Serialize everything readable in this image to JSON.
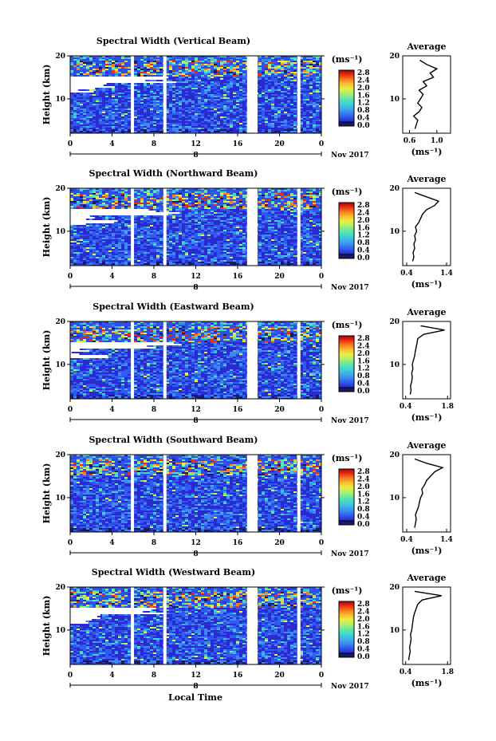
{
  "figure": {
    "xlabel": "Local Time",
    "date_label": "Nov 2017",
    "day_marker": "8",
    "unit_label": "(ms⁻¹)",
    "average_title": "Average",
    "average_xlabel": "(ms⁻¹)",
    "colormap": [
      "#1a1a5e",
      "#2a2ad0",
      "#2f5cf0",
      "#3f8af2",
      "#3fb4e8",
      "#40d8d0",
      "#66e8a0",
      "#a8f070",
      "#e8f040",
      "#f8c030",
      "#f88020",
      "#e83010",
      "#b00000"
    ]
  },
  "chart_data": [
    {
      "type": "heatmap",
      "title": "Spectral Width (Vertical Beam)",
      "ylabel": "Height (km)",
      "xlabel": "Local Time",
      "xlim": [
        0,
        24
      ],
      "ylim": [
        2,
        20
      ],
      "x_ticks": [
        "0",
        "4",
        "8",
        "12",
        "16",
        "20",
        "0"
      ],
      "y_ticks": [
        "20",
        "10"
      ],
      "colorbar": {
        "label": "(ms⁻¹)",
        "ticks": [
          "0.0",
          "0.4",
          "0.8",
          "1.2",
          "1.6",
          "2.0",
          "2.4",
          "2.8"
        ],
        "range": [
          0.0,
          2.8
        ]
      },
      "data_gaps_hours": [
        [
          5.8,
          6.1
        ],
        [
          8.9,
          9.2
        ],
        [
          16.9,
          17.9
        ],
        [
          21.7,
          22.0
        ]
      ],
      "average_profile": {
        "title": "Average",
        "xlabel": "(ms⁻¹)",
        "x_ticks": [
          "0.6",
          "1.0"
        ],
        "xlim": [
          0.5,
          1.2
        ],
        "y_ticks": [
          "20",
          "10"
        ],
        "ylim": [
          2,
          20
        ],
        "height_km": [
          3,
          4,
          5,
          6,
          7,
          8,
          9,
          10,
          11,
          12,
          13,
          14,
          15,
          16,
          17,
          18,
          19
        ],
        "value": [
          0.68,
          0.7,
          0.72,
          0.66,
          0.74,
          0.78,
          0.72,
          0.76,
          0.8,
          0.74,
          0.85,
          0.8,
          0.95,
          0.9,
          1.0,
          0.85,
          0.75
        ]
      }
    },
    {
      "type": "heatmap",
      "title": "Spectral Width (Northward Beam)",
      "ylabel": "Height (km)",
      "xlabel": "Local Time",
      "xlim": [
        0,
        24
      ],
      "ylim": [
        2,
        20
      ],
      "x_ticks": [
        "0",
        "4",
        "8",
        "12",
        "16",
        "20",
        "0"
      ],
      "y_ticks": [
        "20",
        "10"
      ],
      "colorbar": {
        "label": "(ms⁻¹)",
        "ticks": [
          "0.0",
          "0.4",
          "0.8",
          "1.2",
          "1.6",
          "2.0",
          "2.4",
          "2.8"
        ],
        "range": [
          0.0,
          2.8
        ]
      },
      "data_gaps_hours": [
        [
          5.8,
          6.1
        ],
        [
          8.9,
          9.2
        ],
        [
          16.9,
          17.9
        ],
        [
          21.7,
          22.0
        ]
      ],
      "average_profile": {
        "title": "Average",
        "xlabel": "(ms⁻¹)",
        "x_ticks": [
          "0.4",
          "1.4"
        ],
        "xlim": [
          0.3,
          1.5
        ],
        "y_ticks": [
          "20",
          "10"
        ],
        "ylim": [
          2,
          20
        ],
        "height_km": [
          3,
          4,
          5,
          6,
          7,
          8,
          9,
          10,
          11,
          12,
          13,
          14,
          15,
          16,
          17,
          18,
          19
        ],
        "value": [
          0.55,
          0.58,
          0.56,
          0.6,
          0.58,
          0.62,
          0.6,
          0.65,
          0.62,
          0.7,
          0.75,
          0.8,
          0.9,
          1.1,
          1.2,
          0.9,
          0.6
        ]
      }
    },
    {
      "type": "heatmap",
      "title": "Spectral Width (Eastward Beam)",
      "ylabel": "Height (km)",
      "xlabel": "Local Time",
      "xlim": [
        0,
        24
      ],
      "ylim": [
        2,
        20
      ],
      "x_ticks": [
        "0",
        "4",
        "8",
        "12",
        "16",
        "20",
        "0"
      ],
      "y_ticks": [
        "20",
        "10"
      ],
      "colorbar": {
        "label": "(ms⁻¹)",
        "ticks": [
          "0.0",
          "0.4",
          "0.8",
          "1.2",
          "1.6",
          "2.0",
          "2.4",
          "2.8"
        ],
        "range": [
          0.0,
          2.8
        ]
      },
      "data_gaps_hours": [
        [
          5.8,
          6.1
        ],
        [
          8.9,
          9.2
        ],
        [
          16.9,
          17.9
        ],
        [
          21.7,
          22.0
        ]
      ],
      "average_profile": {
        "title": "Average",
        "xlabel": "(ms⁻¹)",
        "x_ticks": [
          "0.4",
          "1.8"
        ],
        "xlim": [
          0.3,
          1.9
        ],
        "y_ticks": [
          "20",
          "10"
        ],
        "ylim": [
          2,
          20
        ],
        "height_km": [
          3,
          4,
          5,
          6,
          7,
          8,
          9,
          10,
          11,
          12,
          13,
          14,
          15,
          16,
          17,
          18,
          19
        ],
        "value": [
          0.55,
          0.58,
          0.56,
          0.6,
          0.62,
          0.6,
          0.64,
          0.62,
          0.66,
          0.7,
          0.72,
          0.75,
          0.78,
          0.8,
          1.0,
          1.7,
          0.9
        ]
      }
    },
    {
      "type": "heatmap",
      "title": "Spectral Width (Southward Beam)",
      "ylabel": "Height (km)",
      "xlabel": "Local Time",
      "xlim": [
        0,
        24
      ],
      "ylim": [
        2,
        20
      ],
      "x_ticks": [
        "0",
        "4",
        "8",
        "12",
        "16",
        "20",
        "0"
      ],
      "y_ticks": [
        "20",
        "10"
      ],
      "colorbar": {
        "label": "(ms⁻¹)",
        "ticks": [
          "0.0",
          "0.4",
          "0.8",
          "1.2",
          "1.6",
          "2.0",
          "2.4",
          "2.8"
        ],
        "range": [
          0.0,
          2.8
        ]
      },
      "data_gaps_hours": [
        [
          5.8,
          6.1
        ],
        [
          8.9,
          9.2
        ],
        [
          16.9,
          17.9
        ],
        [
          21.7,
          22.0
        ]
      ],
      "average_profile": {
        "title": "Average",
        "xlabel": "(ms⁻¹)",
        "x_ticks": [
          "0.4",
          "1.4"
        ],
        "xlim": [
          0.3,
          1.5
        ],
        "y_ticks": [
          "20",
          "10"
        ],
        "ylim": [
          2,
          20
        ],
        "height_km": [
          3,
          4,
          5,
          6,
          7,
          8,
          9,
          10,
          11,
          12,
          13,
          14,
          15,
          16,
          17,
          18,
          19
        ],
        "value": [
          0.6,
          0.62,
          0.64,
          0.62,
          0.66,
          0.7,
          0.72,
          0.75,
          0.8,
          0.78,
          0.85,
          0.9,
          1.0,
          1.1,
          1.3,
          0.9,
          0.6
        ]
      }
    },
    {
      "type": "heatmap",
      "title": "Spectral Width (Westward Beam)",
      "ylabel": "Height (km)",
      "xlabel": "Local Time",
      "xlim": [
        0,
        24
      ],
      "ylim": [
        2,
        20
      ],
      "x_ticks": [
        "0",
        "4",
        "8",
        "12",
        "16",
        "20",
        "0"
      ],
      "y_ticks": [
        "20",
        "10"
      ],
      "colorbar": {
        "label": "(ms⁻¹)",
        "ticks": [
          "0.0",
          "0.4",
          "0.8",
          "1.2",
          "1.6",
          "2.0",
          "2.4",
          "2.8"
        ],
        "range": [
          0.0,
          2.8
        ]
      },
      "data_gaps_hours": [
        [
          5.8,
          6.1
        ],
        [
          8.9,
          9.2
        ],
        [
          16.9,
          17.9
        ],
        [
          21.7,
          22.0
        ]
      ],
      "average_profile": {
        "title": "Average",
        "xlabel": "(ms⁻¹)",
        "x_ticks": [
          "0.4",
          "1.8"
        ],
        "xlim": [
          0.3,
          1.9
        ],
        "y_ticks": [
          "20",
          "10"
        ],
        "ylim": [
          2,
          20
        ],
        "height_km": [
          3,
          4,
          5,
          6,
          7,
          8,
          9,
          10,
          11,
          12,
          13,
          14,
          15,
          16,
          17,
          18,
          19
        ],
        "value": [
          0.5,
          0.52,
          0.55,
          0.53,
          0.56,
          0.58,
          0.56,
          0.6,
          0.62,
          0.64,
          0.66,
          0.7,
          0.75,
          0.8,
          0.95,
          1.6,
          0.7
        ]
      }
    }
  ]
}
